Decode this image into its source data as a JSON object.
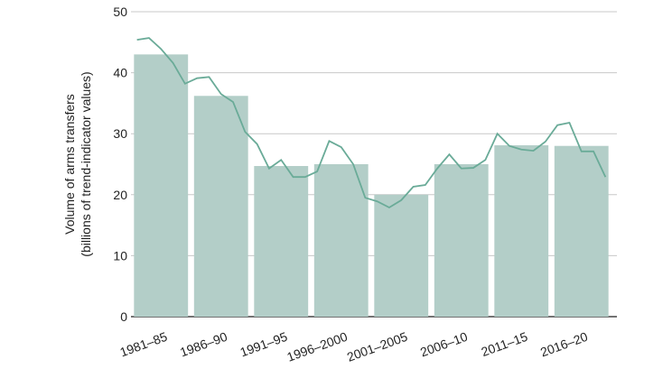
{
  "chart_data": {
    "type": "bar",
    "ylabel": [
      "Volume of arms transfers",
      "(billions of trend-indicator values)"
    ],
    "categories": [
      "1981–85",
      "1986–90",
      "1991–95",
      "1996–2000",
      "2001–2005",
      "2006–10",
      "2011–15",
      "2016–20"
    ],
    "series": [
      {
        "type": "bar",
        "color": "#b3cec8",
        "values": [
          43,
          36.2,
          24.7,
          25,
          20,
          25,
          28.1,
          28
        ]
      },
      {
        "type": "line",
        "color": "#6aab98",
        "x": [
          1981,
          1982,
          1983,
          1984,
          1985,
          1986,
          1987,
          1988,
          1989,
          1990,
          1991,
          1992,
          1993,
          1994,
          1995,
          1996,
          1997,
          1998,
          1999,
          2000,
          2001,
          2002,
          2003,
          2004,
          2005,
          2006,
          2007,
          2008,
          2009,
          2010,
          2011,
          2012,
          2013,
          2014,
          2015,
          2016,
          2017,
          2018,
          2019,
          2020
        ],
        "values": [
          45.4,
          45.7,
          43.9,
          41.6,
          38.2,
          39.1,
          39.3,
          36.5,
          35.2,
          30.3,
          28.3,
          24.3,
          25.7,
          22.9,
          22.9,
          23.8,
          28.8,
          27.8,
          25,
          19.5,
          18.9,
          17.9,
          19.1,
          21.3,
          21.6,
          24.3,
          26.6,
          24.3,
          24.4,
          25.7,
          30,
          28,
          27.4,
          27.2,
          28.7,
          31.4,
          31.8,
          27.1,
          27.1,
          22.9
        ]
      }
    ],
    "xlim": [
      1980.5,
      2020.5
    ],
    "ylim": [
      0,
      50
    ],
    "yticks": [
      0,
      10,
      20,
      30,
      40,
      50
    ],
    "grid": true
  }
}
